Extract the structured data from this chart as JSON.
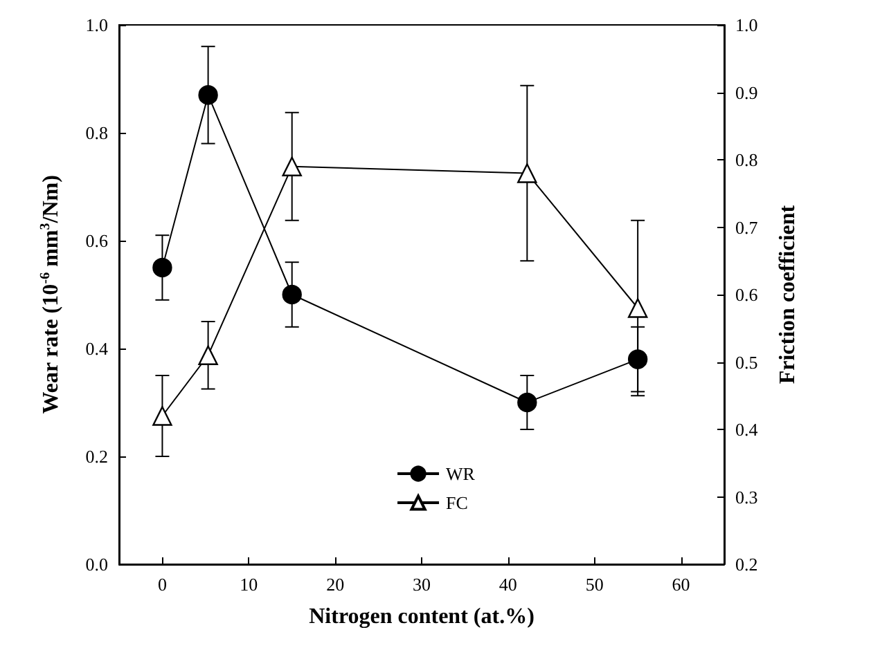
{
  "chart_data": {
    "type": "line",
    "xlabel": "Nitrogen content (at.%)",
    "ylabel": "Wear rate (10$^{-6}$ mm$^{3}$/Nm)",
    "y2label": "Friction coefficient",
    "x": [
      0,
      5.3,
      15,
      42.2,
      55
    ],
    "series": [
      {
        "name": "WR",
        "color": "#000000",
        "marker": "circle",
        "values": [
          0.55,
          0.87,
          0.5,
          0.3,
          0.38
        ],
        "errors": [
          0.06,
          0.09,
          0.06,
          0.05,
          0.06
        ]
      },
      {
        "name": "FC",
        "color": "#000000",
        "marker": "triangle",
        "axis": "y2",
        "values": [
          0.42,
          0.51,
          0.79,
          0.78,
          0.58
        ],
        "errors": [
          0.06,
          0.05,
          0.08,
          0.13,
          0.13
        ]
      }
    ],
    "xlim": [
      -5,
      65
    ],
    "xticks": [
      0,
      10,
      20,
      30,
      40,
      50,
      60
    ],
    "ylim": [
      0,
      1
    ],
    "yticks": [
      {
        "value": 0,
        "label": "0.0"
      },
      {
        "value": 0.2,
        "label": "0.2"
      },
      {
        "value": 0.4,
        "label": "0.4"
      },
      {
        "value": 0.6,
        "label": "0.6"
      },
      {
        "value": 0.8,
        "label": "0.8"
      },
      {
        "value": 1,
        "label": "1.0"
      }
    ],
    "y2lim": [
      0.2,
      1
    ],
    "y2ticks": [
      {
        "value": 0.2,
        "label": "0.2"
      },
      {
        "value": 0.3,
        "label": "0.3"
      },
      {
        "value": 0.4,
        "label": "0.4"
      },
      {
        "value": 0.5,
        "label": "0.5"
      },
      {
        "value": 0.6,
        "label": "0.6"
      },
      {
        "value": 0.7,
        "label": "0.7"
      },
      {
        "value": 0.8,
        "label": "0.8"
      },
      {
        "value": 0.9,
        "label": "0.9"
      },
      {
        "value": 1,
        "label": "1.0"
      }
    ],
    "legend": "bottom",
    "grid": false,
    "line_style": "solid"
  }
}
